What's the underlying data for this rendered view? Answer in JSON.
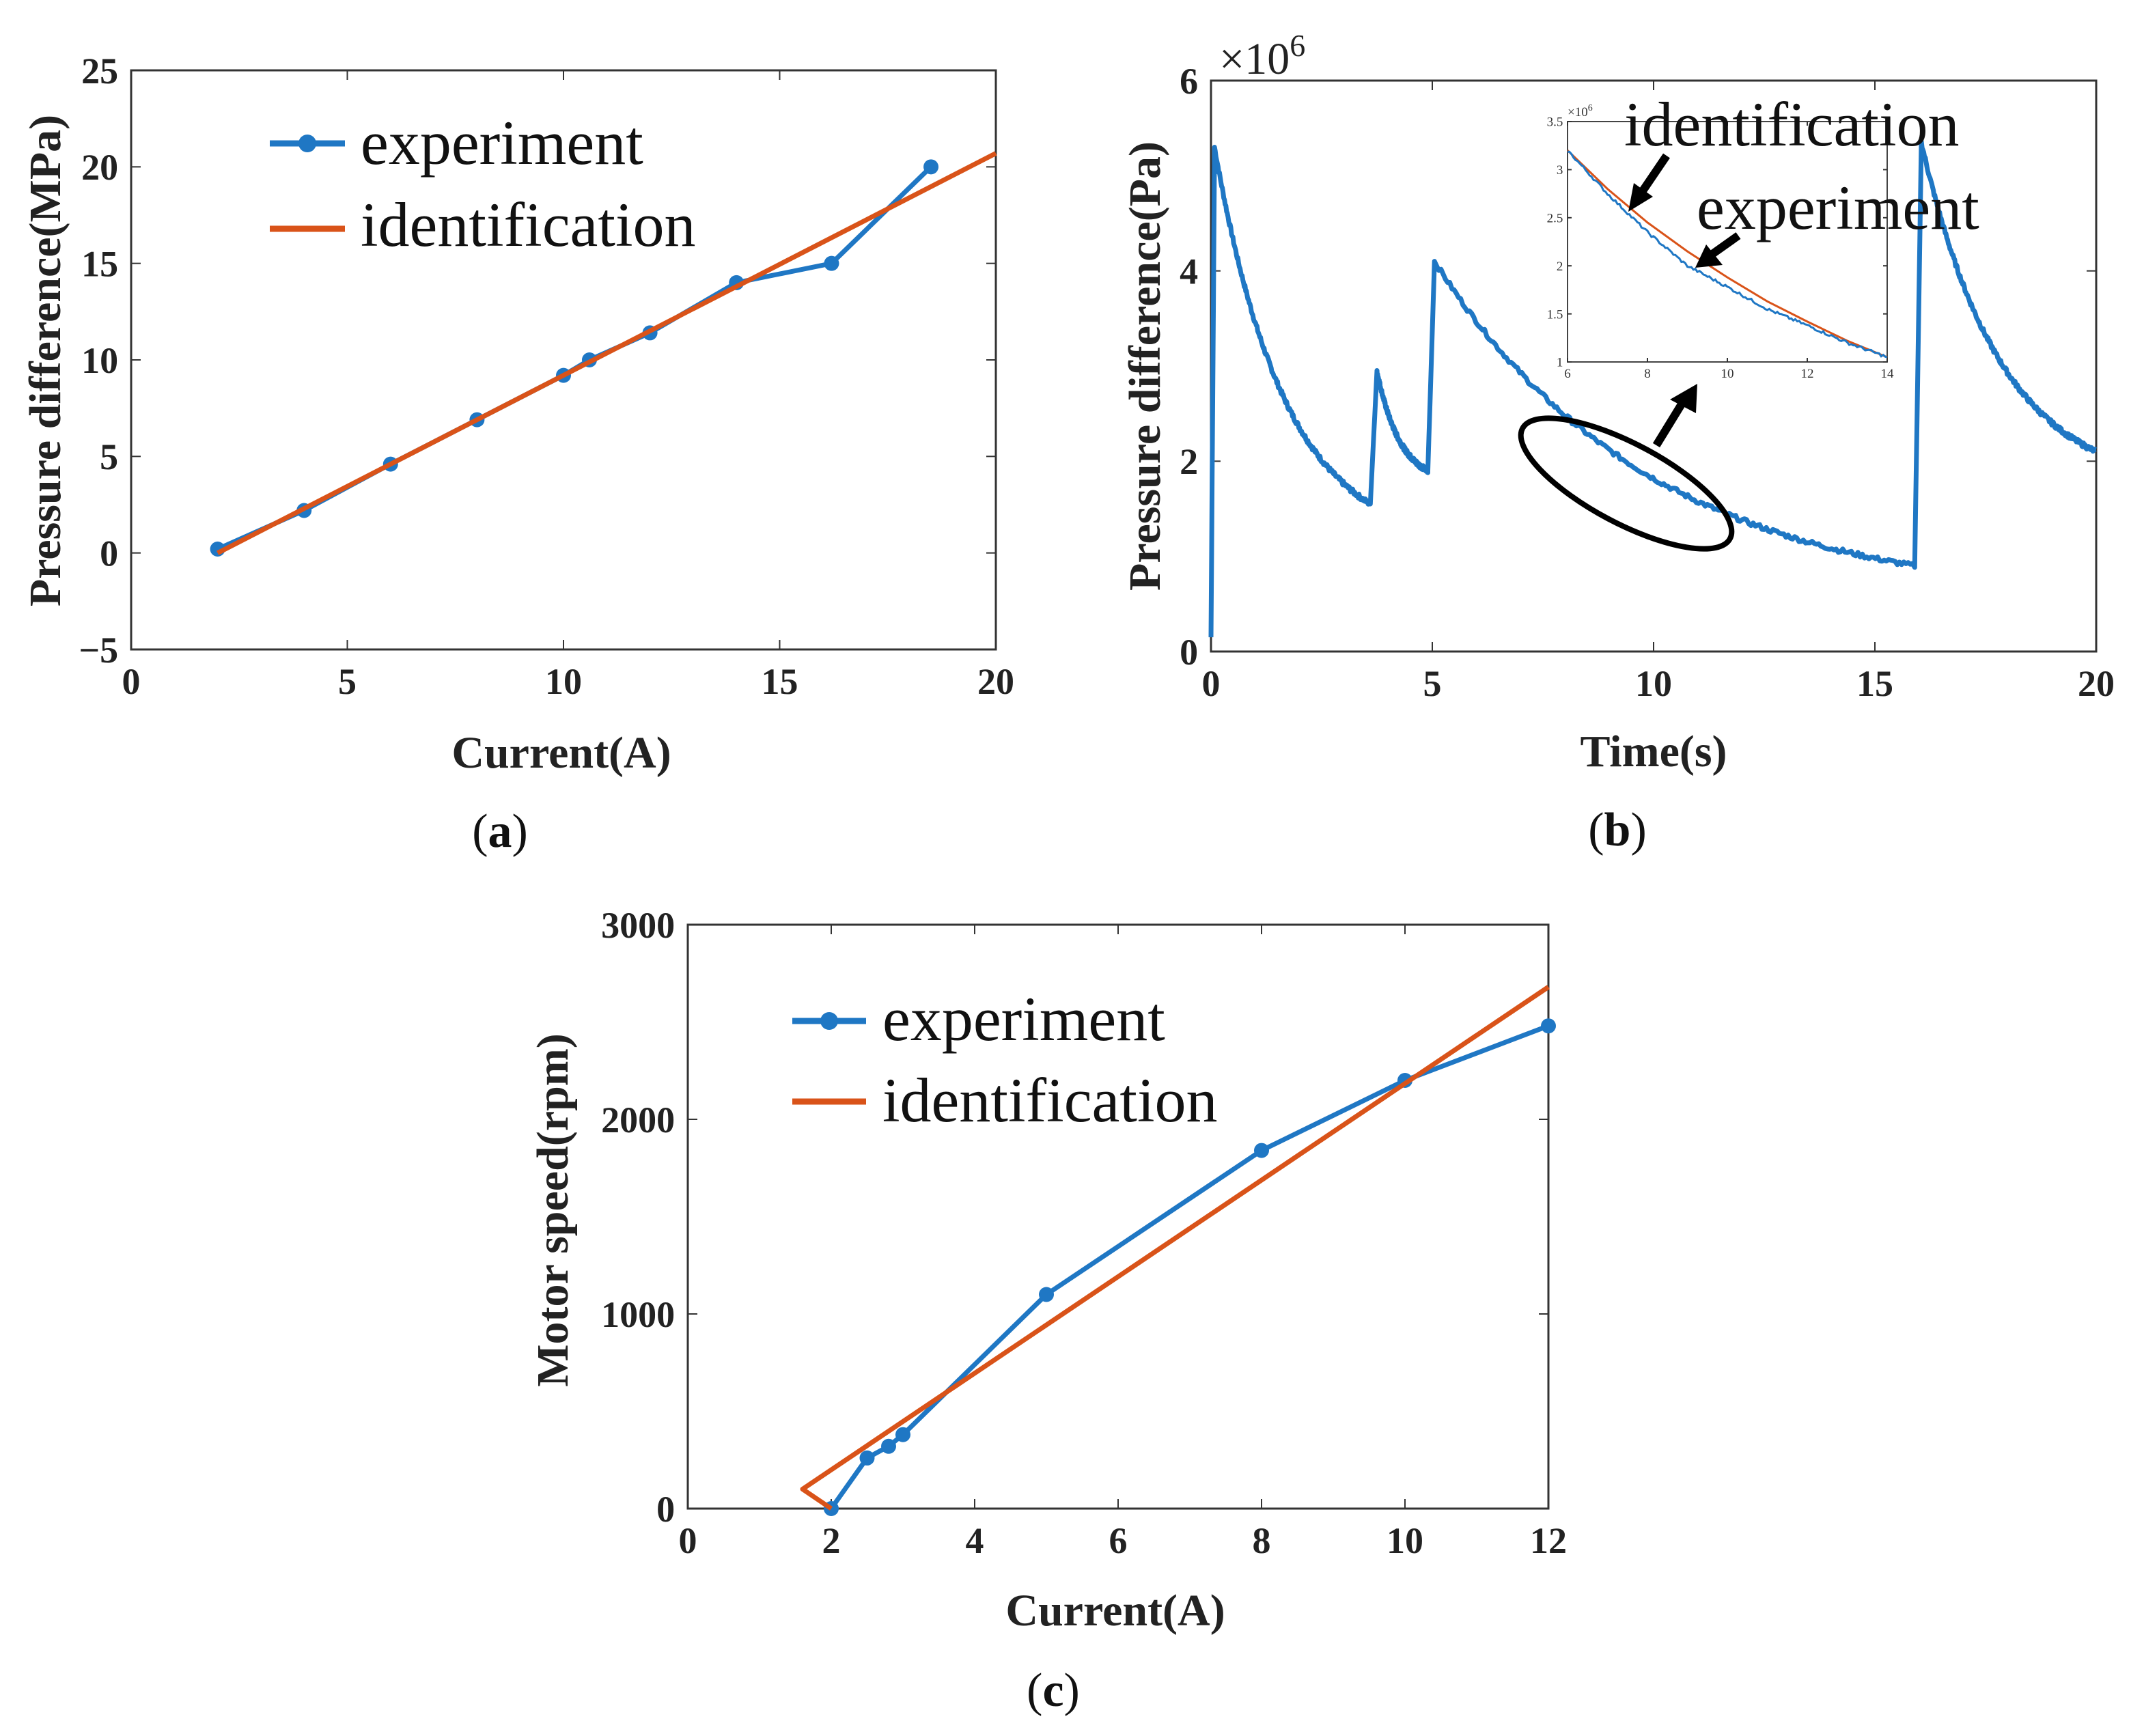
{
  "figure": {
    "background": "#ffffff"
  },
  "colors": {
    "experiment": "#1f77c4",
    "identification": "#d95319",
    "axis": "#333333",
    "annotation": "#000000"
  },
  "chart_data": [
    {
      "id": "a",
      "type": "line",
      "caption": {
        "open": "(",
        "letter": "a",
        "close": ")"
      },
      "xlabel": "Current(A)",
      "ylabel": "Pressure difference(MPa)",
      "xlim": [
        0,
        20
      ],
      "ylim": [
        -5,
        25
      ],
      "xticks": [
        0,
        5,
        10,
        15,
        20
      ],
      "yticks": [
        -5,
        0,
        5,
        10,
        15,
        20,
        25
      ],
      "ytick_labels": [
        "−5",
        "0",
        "5",
        "10",
        "15",
        "20",
        "25"
      ],
      "legend": {
        "placement": "top-left",
        "entries": [
          "experiment",
          "identification"
        ]
      },
      "series": [
        {
          "name": "experiment",
          "style": "line-marker",
          "x": [
            2,
            4,
            6,
            8,
            10,
            10.6,
            12,
            14,
            16.2,
            18.5
          ],
          "y": [
            0.2,
            2.2,
            4.6,
            6.9,
            9.2,
            10,
            11.4,
            14,
            15,
            20
          ]
        },
        {
          "name": "identification",
          "style": "line",
          "x": [
            2,
            20
          ],
          "y": [
            0,
            20.7
          ]
        }
      ]
    },
    {
      "id": "b",
      "type": "line",
      "caption": {
        "open": "(",
        "letter": "b",
        "close": ")"
      },
      "xlabel": "Time(s)",
      "ylabel": "Pressure difference(Pa)",
      "multiplier": {
        "base": "×10",
        "exp": "6"
      },
      "xlim": [
        0,
        20
      ],
      "ylim": [
        0,
        6
      ],
      "xticks": [
        0,
        5,
        10,
        15,
        20
      ],
      "yticks": [
        0,
        2,
        4,
        6
      ],
      "segments": [
        {
          "t0": 0,
          "t1": 0.08,
          "start": 0.15,
          "end": 5.3,
          "shape": "rise"
        },
        {
          "t0": 0.08,
          "t1": 3.6,
          "start": 5.3,
          "end": 1.55,
          "shape": "decay"
        },
        {
          "t0": 3.6,
          "t1": 3.75,
          "start": 1.55,
          "end": 2.95,
          "shape": "rise"
        },
        {
          "t0": 3.75,
          "t1": 4.9,
          "start": 2.95,
          "end": 1.9,
          "shape": "decay"
        },
        {
          "t0": 4.9,
          "t1": 5.05,
          "start": 1.9,
          "end": 4.1,
          "shape": "rise"
        },
        {
          "t0": 5.05,
          "t1": 15.9,
          "start": 4.1,
          "end": 0.9,
          "shape": "decay"
        },
        {
          "t0": 15.9,
          "t1": 16.05,
          "start": 0.9,
          "end": 5.35,
          "shape": "rise"
        },
        {
          "t0": 16.05,
          "t1": 20,
          "start": 5.35,
          "end": 2.1,
          "shape": "decay"
        }
      ],
      "inset": {
        "xlim": [
          6,
          14
        ],
        "ylim": [
          1,
          3.5
        ],
        "xticks": [
          6,
          8,
          10,
          12,
          14
        ],
        "yticks": [
          1,
          1.5,
          2,
          2.5,
          3,
          3.5
        ],
        "multiplier": {
          "base": "×10",
          "exp": "6"
        },
        "experiment": {
          "x": [
            6,
            7,
            8,
            9,
            10,
            11,
            12,
            13,
            14
          ],
          "y": [
            3.2,
            2.75,
            2.35,
            2.0,
            1.78,
            1.55,
            1.38,
            1.2,
            1.05
          ]
        },
        "identification": {
          "x": [
            6,
            7,
            8,
            9,
            10,
            11,
            12,
            13,
            14
          ],
          "y": [
            3.2,
            2.8,
            2.45,
            2.15,
            1.88,
            1.63,
            1.42,
            1.22,
            1.05
          ]
        }
      },
      "annotations": [
        {
          "label": "identification"
        },
        {
          "label": "experiment"
        }
      ]
    },
    {
      "id": "c",
      "type": "line",
      "caption": {
        "open": "(",
        "letter": "c",
        "close": ")"
      },
      "xlabel": "Current(A)",
      "ylabel": "Motor speed(rpm)",
      "xlim": [
        0,
        12
      ],
      "ylim": [
        0,
        3000
      ],
      "xticks": [
        0,
        2,
        4,
        6,
        8,
        10,
        12
      ],
      "yticks": [
        0,
        1000,
        2000,
        3000
      ],
      "legend": {
        "placement": "top-left",
        "entries": [
          "experiment",
          "identification"
        ]
      },
      "series": [
        {
          "name": "experiment",
          "style": "line-marker",
          "x": [
            2,
            2.5,
            2.8,
            3,
            5,
            8,
            10,
            12
          ],
          "y": [
            0,
            260,
            320,
            380,
            1100,
            1840,
            2200,
            2480
          ]
        },
        {
          "name": "identification",
          "style": "line",
          "x": [
            2,
            1.6,
            12
          ],
          "y": [
            0,
            100,
            2680
          ]
        }
      ]
    }
  ]
}
